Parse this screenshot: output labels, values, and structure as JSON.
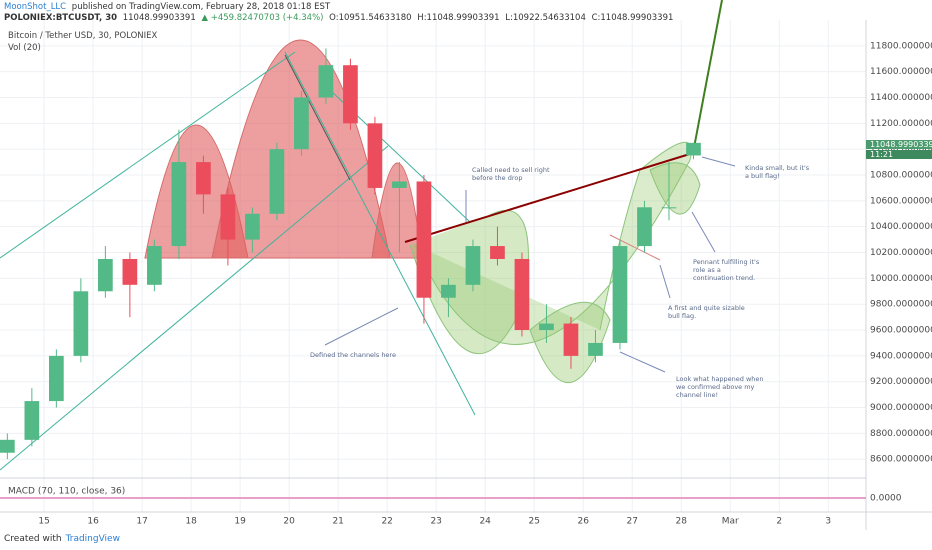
{
  "header": {
    "author": "MoonShot_LLC",
    "published": " published on TradingView.com, February 28, 2018 01:18 EST",
    "symbol": "POLONIEX:BTCUSDT, 30",
    "last": "11048.99903391",
    "change": "▲ +459.82470703 (+4.34%)",
    "open": "O:10951.54633180",
    "high": "H:11048.99903391",
    "low": "L:10922.54633104",
    "close": "C:11048.99903391"
  },
  "footer": {
    "created_with": "Created with",
    "brand": "TradingView"
  },
  "chart_data": {
    "type": "candlestick",
    "series_label": "Bitcoin / Tether USD, 30, POLONIEX",
    "volume_label": "Vol (20)",
    "up_color": "#53b987",
    "down_color": "#eb4d5c",
    "x": [
      14.25,
      14.75,
      15.25,
      15.75,
      16.25,
      16.75,
      17.25,
      17.75,
      18.25,
      18.75,
      19.25,
      19.75,
      20.25,
      20.75,
      21.25,
      21.75,
      22.25,
      22.75,
      23.25,
      23.75,
      24.25,
      24.75,
      25.25,
      25.75,
      26.25,
      26.75,
      27.25,
      27.75,
      28.25
    ],
    "open": [
      8650,
      8750,
      9050,
      9400,
      9900,
      10150,
      9950,
      10250,
      10900,
      10650,
      10300,
      10500,
      11000,
      11400,
      11650,
      11200,
      10700,
      10750,
      9850,
      9950,
      10250,
      10150,
      9600,
      9650,
      9400,
      9500,
      10250,
      10550,
      10951.5463318
    ],
    "high": [
      8800,
      9150,
      9450,
      10000,
      10250,
      10200,
      10300,
      11150,
      10950,
      10700,
      10550,
      11050,
      11450,
      11780,
      11700,
      11250,
      10900,
      10800,
      10000,
      10300,
      10400,
      10200,
      9800,
      9700,
      9600,
      10300,
      10600,
      10900,
      11048.99903391
    ],
    "low": [
      8600,
      8700,
      9000,
      9350,
      9850,
      9700,
      9900,
      10150,
      10500,
      10100,
      10200,
      10450,
      10950,
      11350,
      11150,
      10650,
      10200,
      9650,
      9700,
      9900,
      10100,
      9550,
      9500,
      9300,
      9350,
      9450,
      10200,
      10450,
      10922.54633104
    ],
    "close": [
      8750,
      9050,
      9400,
      9900,
      10150,
      9950,
      10250,
      10900,
      10650,
      10300,
      10500,
      11000,
      11400,
      11650,
      11200,
      10700,
      10750,
      9850,
      9950,
      10250,
      10150,
      9600,
      9650,
      9400,
      9500,
      10250,
      10550,
      10550,
      11048.99903391
    ],
    "xlim": [
      14.1,
      31.77
    ],
    "xticks": [
      15,
      16,
      17,
      18,
      19,
      20,
      21,
      22,
      23,
      24,
      25,
      26,
      27,
      28,
      {
        "value": 29,
        "label": "Mar"
      },
      {
        "value": 30,
        "label": "2"
      },
      {
        "value": 31,
        "label": "3"
      }
    ],
    "ylim": [
      8470,
      12000
    ],
    "yticks": [
      {
        "value": 8600,
        "label": "8600.00000000"
      },
      {
        "value": 8800,
        "label": "8800.00000000"
      },
      {
        "value": 9000,
        "label": "9000.00000000"
      },
      {
        "value": 9200,
        "label": "9200.00000000"
      },
      {
        "value": 9400,
        "label": "9400.00000000"
      },
      {
        "value": 9600,
        "label": "9600.00000000"
      },
      {
        "value": 9800,
        "label": "9800.00000000"
      },
      {
        "value": 10000,
        "label": "10000.00000000"
      },
      {
        "value": 10200,
        "label": "10200.00000000"
      },
      {
        "value": 10400,
        "label": "10400.00000000"
      },
      {
        "value": 10600,
        "label": "10600.00000000"
      },
      {
        "value": 10800,
        "label": "10800.00000000"
      },
      {
        "value": 11000,
        "label": "11000.00000000"
      },
      {
        "value": 11200,
        "label": "11200.00000000"
      },
      {
        "value": 11400,
        "label": "11400.00000000"
      },
      {
        "value": 11600,
        "label": "11600.00000000"
      },
      {
        "value": 11800,
        "label": "11800.00000000"
      }
    ],
    "grid": true,
    "last_price_label": "11048.99903391",
    "countdown_label": "11:21",
    "macd": {
      "label": "MACD (70, 110, close, 36)",
      "yticks": [
        {
          "value": 0,
          "label": "0.0000"
        }
      ]
    },
    "annotations": [
      "Called need to sell right before the drop",
      "Kinda small, but it's a bull flag!",
      "Pennant fulfilling it's role as a continuation trend.",
      "A first and quite sizable bull flag.",
      "Defined the channels here",
      "Look what happened when we confirmed above my channel line!"
    ]
  }
}
